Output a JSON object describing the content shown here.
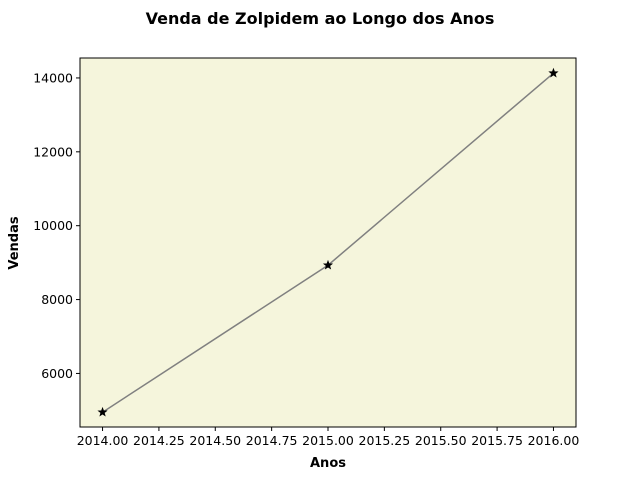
{
  "chart_data": {
    "type": "line",
    "title": "Venda de Zolpidem ao Longo dos Anos",
    "xlabel": "Anos",
    "ylabel": "Vendas",
    "x": [
      2014,
      2015,
      2016
    ],
    "series": [
      {
        "values": [
          4950,
          8930,
          14130
        ]
      }
    ],
    "xlim": [
      2013.9,
      2016.1
    ],
    "ylim": [
      4550,
      14540
    ],
    "xticks": [
      2014.0,
      2014.25,
      2014.5,
      2014.75,
      2015.0,
      2015.25,
      2015.5,
      2015.75,
      2016.0
    ],
    "xtick_labels": [
      "2014.00",
      "2014.25",
      "2014.50",
      "2014.75",
      "2015.00",
      "2015.25",
      "2015.50",
      "2015.75",
      "2016.00"
    ],
    "yticks": [
      6000,
      8000,
      10000,
      12000,
      14000
    ],
    "ytick_labels": [
      "6000",
      "8000",
      "10000",
      "12000",
      "14000"
    ],
    "grid": false,
    "marker": "star",
    "colors": {
      "plot_background": "#f5f5dc",
      "line": "#808080",
      "marker_face": "#000000",
      "axes_edge": "#000000"
    }
  }
}
